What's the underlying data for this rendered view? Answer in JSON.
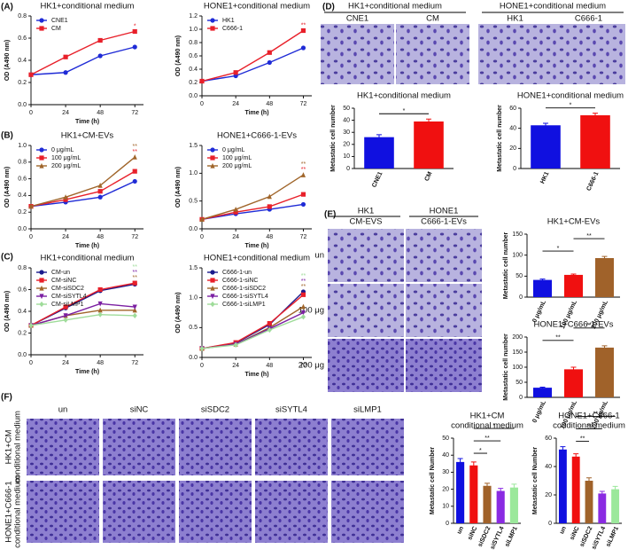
{
  "panel_labels": [
    "(A)",
    "(B)",
    "(C)",
    "(D)",
    "(E)",
    "(F)"
  ],
  "images": {
    "D": [
      {
        "title": "HK1+conditional medium",
        "columns": [
          "CNE1",
          "CM"
        ]
      },
      {
        "title": "HONE1+conditional medium",
        "columns": [
          "HK1",
          "C666-1"
        ]
      }
    ],
    "E": {
      "columns": [
        [
          "HK1",
          "CM-EVS"
        ],
        [
          "HONE1",
          "C666-1-EVs"
        ]
      ],
      "rows": [
        "un",
        "100 μg",
        "200 μg"
      ]
    },
    "F": {
      "columns": [
        "un",
        "siNC",
        "siSDC2",
        "siSYTL4",
        "siLMP1"
      ],
      "rows": [
        [
          "HK1+CM",
          "conditional medium"
        ],
        [
          "HONE1+C666-1",
          "conditional medium"
        ]
      ]
    }
  },
  "chart_data": [
    {
      "type": "line",
      "title": "HK1+conditional medium",
      "xlabel": "Time (h)",
      "ylabel": "OD (A490 nm)",
      "legend": "upper left",
      "x": [
        0,
        24,
        48,
        72
      ],
      "xlim": [
        0,
        78
      ],
      "xticks": [
        0,
        24,
        48,
        72
      ],
      "ylim": [
        0,
        0.8
      ],
      "yticks": [
        {
          "value": 0,
          "label": "0.0"
        },
        0.2,
        0.4,
        0.6,
        0.8
      ],
      "series": [
        {
          "name": "CNE1",
          "color": "#1f2bd6",
          "marker": "circle",
          "values": [
            0.27,
            0.29,
            0.44,
            0.52
          ]
        },
        {
          "name": "CM",
          "color": "#e8202a",
          "marker": "square",
          "values": [
            0.27,
            0.43,
            0.58,
            0.66
          ],
          "value_labels": [
            null,
            null,
            null,
            "*"
          ]
        }
      ]
    },
    {
      "type": "line",
      "title": "HONE1+conditional medium",
      "xlabel": "Time (h)",
      "ylabel": "OD (A490 nm)",
      "legend": "upper left",
      "x": [
        0,
        24,
        48,
        72
      ],
      "xlim": [
        0,
        78
      ],
      "xticks": [
        0,
        24,
        48,
        72
      ],
      "ylim": [
        0,
        1.2
      ],
      "yticks": [
        {
          "value": 0,
          "label": "0.0"
        },
        0.2,
        0.4,
        0.6,
        0.8,
        {
          "value": 1,
          "label": "1.0"
        },
        1.2
      ],
      "series": [
        {
          "name": "HK1",
          "color": "#1f2bd6",
          "marker": "circle",
          "values": [
            0.22,
            0.3,
            0.5,
            0.72
          ]
        },
        {
          "name": "C666-1",
          "color": "#e8202a",
          "marker": "square",
          "values": [
            0.22,
            0.35,
            0.65,
            0.98
          ],
          "value_labels": [
            null,
            null,
            null,
            "**"
          ]
        }
      ]
    },
    {
      "type": "line",
      "title": "HK1+CM-EVs",
      "xlabel": "Time (h)",
      "ylabel": "OD (A490 nm)",
      "legend": "upper left",
      "x": [
        0,
        24,
        48,
        72
      ],
      "xlim": [
        0,
        78
      ],
      "xticks": [
        0,
        24,
        48,
        72
      ],
      "ylim": [
        0,
        1
      ],
      "yticks": [
        {
          "value": 0,
          "label": "0.0"
        },
        0.2,
        0.4,
        0.6,
        0.8,
        {
          "value": 1,
          "label": "1.0"
        }
      ],
      "series": [
        {
          "name": "0 μg/mL",
          "color": "#1f2bd6",
          "marker": "circle",
          "values": [
            0.27,
            0.32,
            0.38,
            0.57
          ]
        },
        {
          "name": "100 μg/mL",
          "color": "#e8202a",
          "marker": "square",
          "values": [
            0.27,
            0.35,
            0.45,
            0.69
          ],
          "value_labels": [
            null,
            null,
            null,
            "**"
          ]
        },
        {
          "name": "200 μg/mL",
          "color": "#a0652a",
          "marker": "triangle",
          "values": [
            0.27,
            0.38,
            0.52,
            0.86
          ],
          "value_labels": [
            null,
            null,
            null,
            "**"
          ]
        }
      ]
    },
    {
      "type": "line",
      "title": "HONE1+C666-1-EVs",
      "xlabel": "Time (h)",
      "ylabel": "OD (A490 nm)",
      "legend": "upper left",
      "x": [
        0,
        24,
        48,
        72
      ],
      "xlim": [
        0,
        78
      ],
      "xticks": [
        0,
        24,
        48,
        72
      ],
      "ylim": [
        0,
        1.5
      ],
      "yticks": [
        {
          "value": 0,
          "label": "0.0"
        },
        0.5,
        {
          "value": 1,
          "label": "1.0"
        },
        1.5
      ],
      "series": [
        {
          "name": "0 μg/mL",
          "color": "#1f2bd6",
          "marker": "circle",
          "values": [
            0.17,
            0.27,
            0.35,
            0.44
          ]
        },
        {
          "name": "100 μg/mL",
          "color": "#e8202a",
          "marker": "square",
          "values": [
            0.17,
            0.3,
            0.4,
            0.62
          ],
          "value_labels": [
            null,
            null,
            null,
            "**"
          ]
        },
        {
          "name": "200 μg/mL",
          "color": "#a0652a",
          "marker": "triangle",
          "values": [
            0.17,
            0.35,
            0.58,
            0.97
          ],
          "value_labels": [
            null,
            null,
            null,
            "**"
          ]
        }
      ]
    },
    {
      "type": "line",
      "title": "HK1+conditional medium",
      "xlabel": "Time (h)",
      "ylabel": "OD (A490 nm)",
      "legend": "upper left",
      "x": [
        0,
        24,
        48,
        72
      ],
      "xlim": [
        0,
        78
      ],
      "xticks": [
        0,
        24,
        48,
        72
      ],
      "ylim": [
        0,
        0.8
      ],
      "yticks": [
        {
          "value": 0,
          "label": "0.0"
        },
        0.2,
        0.4,
        0.6,
        0.8
      ],
      "series": [
        {
          "name": "CM-un",
          "color": "#1a1a8c",
          "marker": "circle",
          "values": [
            0.27,
            0.43,
            0.59,
            0.65
          ]
        },
        {
          "name": "CM-siNC",
          "color": "#e8202a",
          "marker": "square",
          "values": [
            0.27,
            0.44,
            0.6,
            0.66
          ]
        },
        {
          "name": "CM-siSDC2",
          "color": "#a0652a",
          "marker": "triangle",
          "values": [
            0.27,
            0.36,
            0.41,
            0.41
          ],
          "value_labels": [
            null,
            null,
            null,
            "**"
          ]
        },
        {
          "name": "CM-siSYTL4",
          "color": "#7b1fa2",
          "marker": "triangle-down",
          "values": [
            0.27,
            0.36,
            0.47,
            0.44
          ],
          "value_labels": [
            null,
            null,
            null,
            "**"
          ]
        },
        {
          "name": "CM-siLMP1",
          "color": "#9fdc9a",
          "marker": "diamond",
          "values": [
            0.27,
            0.32,
            0.37,
            0.36
          ],
          "value_labels": [
            null,
            null,
            null,
            "**"
          ]
        }
      ]
    },
    {
      "type": "line",
      "title": "HONE1+conditional medium",
      "xlabel": "Time (h)",
      "ylabel": "OD (A490 nm)",
      "legend": "upper left",
      "x": [
        0,
        24,
        48,
        72
      ],
      "xlim": [
        0,
        78
      ],
      "xticks": [
        0,
        24,
        48,
        72
      ],
      "ylim": [
        0,
        1.5
      ],
      "yticks": [
        {
          "value": 0,
          "label": "0.0"
        },
        0.5,
        {
          "value": 1,
          "label": "1.0"
        },
        1.5
      ],
      "series": [
        {
          "name": "C666-1-un",
          "color": "#1a1a8c",
          "marker": "circle",
          "values": [
            0.15,
            0.24,
            0.55,
            1.1
          ]
        },
        {
          "name": "C666-1-siNC",
          "color": "#e8202a",
          "marker": "square",
          "values": [
            0.15,
            0.25,
            0.57,
            1.05
          ]
        },
        {
          "name": "C666-1-siSDC2",
          "color": "#a0652a",
          "marker": "triangle",
          "values": [
            0.15,
            0.22,
            0.5,
            0.85
          ],
          "value_labels": [
            null,
            null,
            null,
            "**"
          ]
        },
        {
          "name": "C666-1-siSYTL4",
          "color": "#7b1fa2",
          "marker": "triangle-down",
          "values": [
            0.15,
            0.22,
            0.48,
            0.75
          ],
          "value_labels": [
            null,
            null,
            null,
            "**"
          ]
        },
        {
          "name": "C666-1-siLMP1",
          "color": "#9fdc9a",
          "marker": "diamond",
          "values": [
            0.15,
            0.21,
            0.46,
            0.68
          ],
          "value_labels": [
            null,
            null,
            null,
            "**"
          ]
        }
      ]
    },
    {
      "type": "bar",
      "title": [
        "HK1+conditional medium"
      ],
      "ylabel": "Metastatic cell number",
      "categories": [
        "CNE1",
        "CM"
      ],
      "values": [
        26,
        39
      ],
      "errors": [
        2,
        2
      ],
      "colors": [
        "#1010e0",
        "#f01010"
      ],
      "ylim": [
        0,
        50
      ],
      "yticks": [
        0,
        10,
        20,
        30,
        40,
        50
      ],
      "brackets": [
        {
          "between": [
            0,
            1
          ],
          "label": "*"
        }
      ]
    },
    {
      "type": "bar",
      "title": [
        "HONE1+conditional medium"
      ],
      "ylabel": "Metastatic cell number",
      "categories": [
        "HK1",
        "C666-1"
      ],
      "values": [
        43,
        53
      ],
      "errors": [
        2,
        2
      ],
      "colors": [
        "#1010e0",
        "#f01010"
      ],
      "ylim": [
        0,
        60
      ],
      "yticks": [
        0,
        20,
        40,
        60
      ],
      "brackets": [
        {
          "between": [
            0,
            1
          ],
          "label": "*"
        }
      ]
    },
    {
      "type": "bar",
      "title": [
        "HK1+CM-EVs"
      ],
      "ylabel": "Metastatic cell number",
      "categories": [
        "0 μg/mL",
        "100 μg/mL",
        "200 μg/mL"
      ],
      "values": [
        41,
        53,
        93
      ],
      "errors": [
        2,
        2,
        4
      ],
      "colors": [
        "#1010e0",
        "#f01010",
        "#a0622a"
      ],
      "ylim": [
        0,
        150
      ],
      "yticks": [
        0,
        50,
        100,
        150
      ],
      "brackets": [
        {
          "between": [
            0,
            1
          ],
          "label": "*"
        },
        {
          "between": [
            1,
            2
          ],
          "label": "**"
        }
      ]
    },
    {
      "type": "bar",
      "title": [
        "HONE1+C666-1-EVs"
      ],
      "ylabel": "Metastatic cell number",
      "categories": [
        "0 μg/mL",
        "100 μg/mL",
        "200 μg/mL"
      ],
      "values": [
        32,
        93,
        165
      ],
      "errors": [
        2,
        7,
        6
      ],
      "colors": [
        "#1010e0",
        "#f01010",
        "#a0622a"
      ],
      "ylim": [
        0,
        200
      ],
      "yticks": [
        0,
        50,
        100,
        150,
        200
      ],
      "brackets": [
        {
          "between": [
            0,
            1
          ],
          "label": "**"
        },
        {
          "between": [
            1,
            2
          ],
          "label": "**"
        }
      ]
    },
    {
      "type": "bar",
      "title": [
        "HK1+CM",
        "conditional medium"
      ],
      "ylabel": "Metastatic cell Number",
      "categories": [
        "un",
        "siNC",
        "siSDC2",
        "siSYTL4",
        "siLMP1"
      ],
      "values": [
        36,
        34,
        22,
        19,
        21
      ],
      "errors": [
        2,
        2,
        1.5,
        1.5,
        2
      ],
      "colors": [
        "#1010e0",
        "#f01010",
        "#a0622a",
        "#8a2be2",
        "#9be89b"
      ],
      "ylim": [
        0,
        50
      ],
      "yticks": [
        0,
        10,
        20,
        30,
        40,
        50
      ],
      "brackets": [
        {
          "between": [
            1,
            2
          ],
          "label": "*"
        },
        {
          "between": [
            1,
            3
          ],
          "label": "**"
        },
        {
          "between": [
            1,
            4
          ],
          "label": "*"
        }
      ]
    },
    {
      "type": "bar",
      "title": [
        "HONE1+C666-1",
        "conditional medium"
      ],
      "ylabel": "Metastatic cell Number",
      "categories": [
        "un",
        "siNC",
        "siSDC2",
        "siSYTL4",
        "siLMP1"
      ],
      "values": [
        52,
        47,
        30,
        21,
        24
      ],
      "errors": [
        2,
        2,
        2,
        1.5,
        2
      ],
      "colors": [
        "#1010e0",
        "#f01010",
        "#a0622a",
        "#8a2be2",
        "#9be89b"
      ],
      "ylim": [
        0,
        60
      ],
      "yticks": [
        0,
        20,
        40,
        60
      ],
      "brackets": [
        {
          "between": [
            1,
            2
          ],
          "label": "**"
        },
        {
          "between": [
            1,
            3
          ],
          "label": "**"
        },
        {
          "between": [
            1,
            4
          ],
          "label": "**"
        }
      ]
    }
  ]
}
